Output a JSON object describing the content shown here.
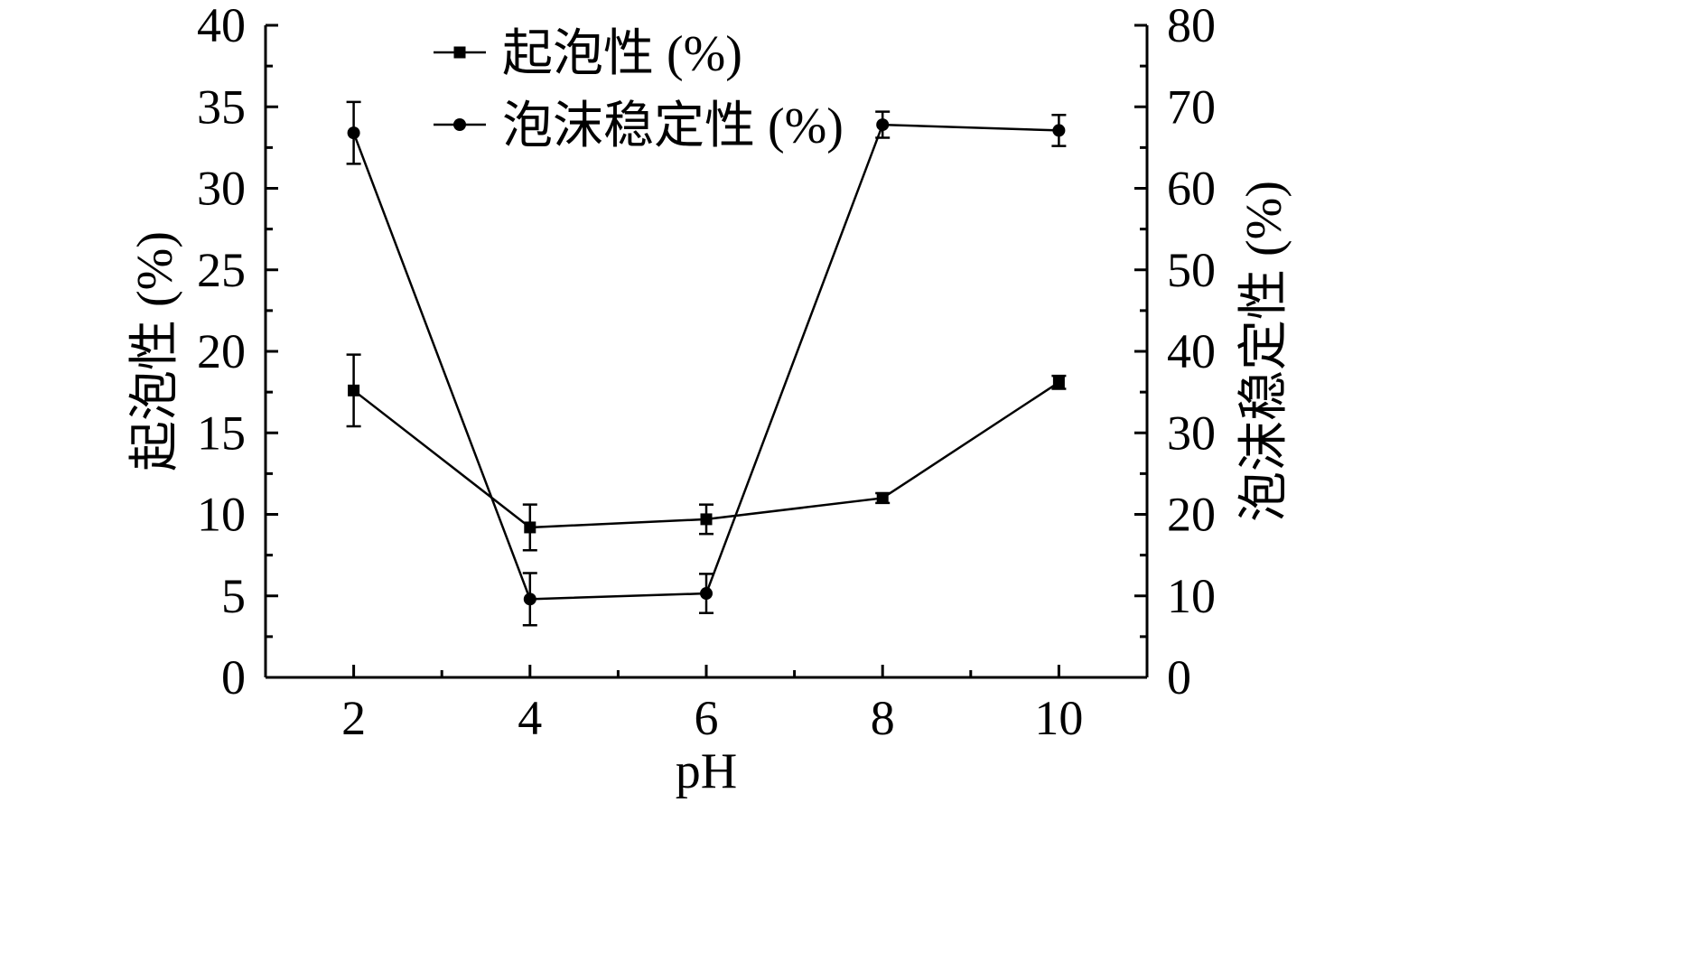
{
  "chart_data": {
    "type": "line",
    "title": "",
    "xlabel": "pH",
    "ylabel_left": "起泡性 (%)",
    "ylabel_right": "泡沫稳定性 (%)",
    "x": [
      2,
      4,
      6,
      8,
      10
    ],
    "xlim": [
      1,
      11
    ],
    "x_ticks": [
      2,
      4,
      6,
      8,
      10
    ],
    "x_tick_labels": [
      "2",
      "4",
      "6",
      "8",
      "10"
    ],
    "ylim_left": [
      0,
      40
    ],
    "y_ticks_left": [
      0,
      5,
      10,
      15,
      20,
      25,
      30,
      35,
      40
    ],
    "y_tick_labels_left": [
      "0",
      "5",
      "10",
      "15",
      "20",
      "25",
      "30",
      "35",
      "40"
    ],
    "ylim_right": [
      0,
      80
    ],
    "y_ticks_right": [
      0,
      10,
      20,
      30,
      40,
      50,
      60,
      70,
      80
    ],
    "y_tick_labels_right": [
      "0",
      "10",
      "20",
      "30",
      "40",
      "50",
      "60",
      "70",
      "80"
    ],
    "grid": false,
    "legend_position": "top-center",
    "series": [
      {
        "name": "起泡性 (%)",
        "axis": "left",
        "marker": "square",
        "values": [
          17.6,
          9.2,
          9.7,
          11.0,
          18.1
        ],
        "errors": [
          2.2,
          1.4,
          0.9,
          0.3,
          0.4
        ]
      },
      {
        "name": "泡沫稳定性 (%)",
        "axis": "right",
        "marker": "circle",
        "values": [
          66.8,
          9.6,
          10.3,
          67.8,
          67.1
        ],
        "errors": [
          3.8,
          3.2,
          2.4,
          1.6,
          1.9
        ]
      }
    ]
  }
}
